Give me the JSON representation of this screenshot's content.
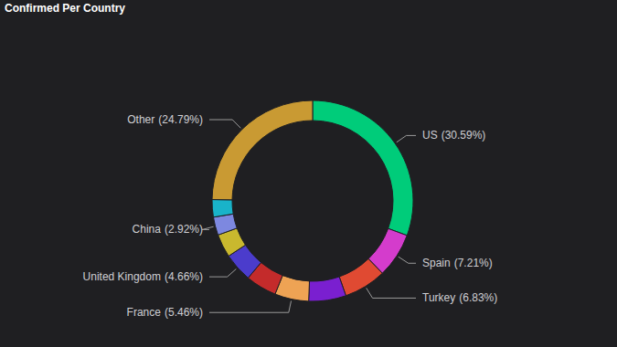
{
  "chart_data": {
    "type": "donut",
    "title": "Confirmed Per Country",
    "categories": [
      "US",
      "Spain",
      "Turkey",
      null,
      "France",
      null,
      "United Kingdom",
      null,
      "China",
      null,
      "Other"
    ],
    "values": [
      30.59,
      7.21,
      6.83,
      6.0,
      5.46,
      5.0,
      4.66,
      3.74,
      2.92,
      2.8,
      24.79
    ],
    "value_labels": [
      "(30.59%)",
      "(7.21%)",
      "(6.83%)",
      null,
      "(5.46%)",
      null,
      "(4.66%)",
      null,
      "(2.92%)",
      null,
      "(24.79%)"
    ],
    "colors": [
      "#00cc7a",
      "#d43ccc",
      "#e04a32",
      "#7a1fd0",
      "#eea354",
      "#c42b2b",
      "#4b3ccc",
      "#c9b82e",
      "#7d88e0",
      "#19b3c9",
      "#c99a33"
    ],
    "data_labels": true
  }
}
